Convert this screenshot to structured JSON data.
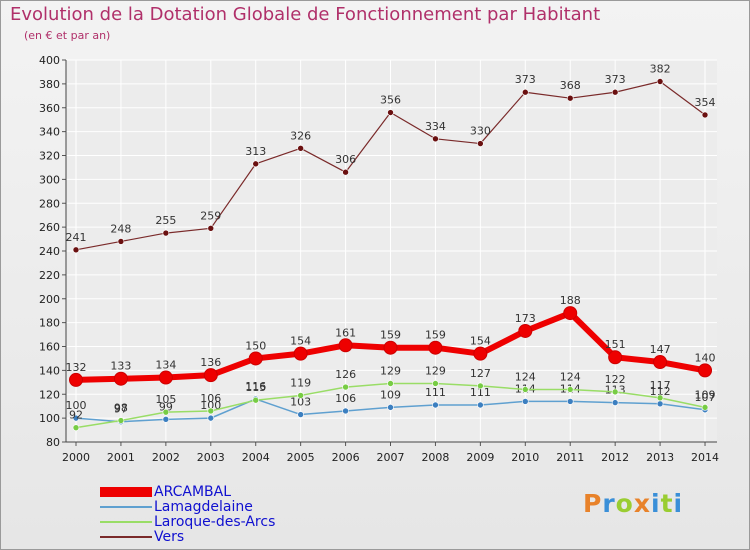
{
  "title": "Evolution de la Dotation Globale de Fonctionnement par Habitant",
  "subtitle": "(en € et par an)",
  "logo": {
    "text": "Proxiti",
    "letters": [
      {
        "ch": "P",
        "color": "#e8822a"
      },
      {
        "ch": "r",
        "color": "#3a8fd8"
      },
      {
        "ch": "o",
        "color": "#9acd32"
      },
      {
        "ch": "x",
        "color": "#e8822a"
      },
      {
        "ch": "i",
        "color": "#3a8fd8"
      },
      {
        "ch": "t",
        "color": "#9acd32"
      },
      {
        "ch": "i",
        "color": "#3a8fd8"
      }
    ]
  },
  "chart_data": {
    "type": "line",
    "title": "Evolution de la Dotation Globale de Fonctionnement par Habitant",
    "subtitle": "(en € et par an)",
    "x": [
      "2000",
      "2001",
      "2002",
      "2003",
      "2004",
      "2005",
      "2006",
      "2007",
      "2008",
      "2009",
      "2010",
      "2011",
      "2012",
      "2013",
      "2014"
    ],
    "ylim": [
      80,
      400
    ],
    "yticks": [
      80,
      100,
      120,
      140,
      160,
      180,
      200,
      220,
      240,
      260,
      280,
      300,
      320,
      340,
      360,
      380,
      400
    ],
    "grid": true,
    "legend_position": "bottom-left",
    "series": [
      {
        "name": "ARCAMBAL",
        "color": "#ee0000",
        "values": [
          132,
          133,
          134,
          136,
          150,
          154,
          161,
          159,
          159,
          154,
          173,
          188,
          151,
          147,
          140
        ],
        "labels": [
          "132",
          "133",
          "134",
          "136",
          "150",
          "154",
          "161",
          "159",
          "159",
          "154",
          "173",
          "188",
          "151",
          "147",
          "140"
        ]
      },
      {
        "name": "Lamagdelaine",
        "color": "#5fa0d0",
        "values": [
          100,
          97,
          99,
          100,
          116,
          103,
          106,
          109,
          111,
          111,
          114,
          114,
          113,
          112,
          107
        ],
        "labels": [
          "100",
          "97",
          "99",
          "100",
          "116",
          "103",
          "106",
          "109",
          "111",
          "111",
          "114",
          "114",
          "113",
          "112",
          "107"
        ]
      },
      {
        "name": "Laroque-des-Arcs",
        "color": "#99dd66",
        "values": [
          92,
          98,
          105,
          106,
          115,
          119,
          126,
          129,
          129,
          127,
          124,
          124,
          122,
          117,
          109
        ],
        "labels": [
          "92",
          "98",
          "105",
          "106",
          "115",
          "119",
          "126",
          "129",
          "129",
          "127",
          "124",
          "124",
          "122",
          "117",
          "109"
        ]
      },
      {
        "name": "Vers",
        "color": "#7a2a2a",
        "values": [
          241,
          248,
          255,
          259,
          313,
          326,
          306,
          356,
          334,
          330,
          373,
          368,
          373,
          382,
          354
        ],
        "labels": [
          "241",
          "248",
          "255",
          "259",
          "313",
          "326",
          "306",
          "356",
          "334",
          "330",
          "373",
          "368",
          "373",
          "382",
          "354"
        ]
      }
    ]
  }
}
